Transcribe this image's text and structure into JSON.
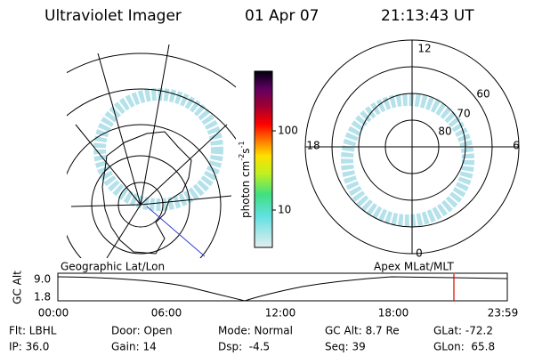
{
  "header": {
    "instrument": "Ultraviolet Imager",
    "date": "01 Apr 07",
    "time": "21:13:43 UT"
  },
  "colorbar": {
    "label_main": "photon cm",
    "label_exp1": "-2",
    "label_s": "s",
    "label_exp2": "-1",
    "ticks": [
      "100",
      "10"
    ]
  },
  "polar_plot": {
    "mlt_labels": [
      "12",
      "18",
      "6",
      "0"
    ],
    "lat_labels": [
      "60",
      "70",
      "80"
    ]
  },
  "altitude_plot": {
    "left_title": "Geographic Lat/Lon",
    "right_title": "Apex MLat/MLT",
    "y_label": "GC Alt",
    "y_ticks": [
      "9.0",
      "1.8"
    ],
    "x_ticks": [
      "00:00",
      "06:00",
      "12:00",
      "18:00",
      "23:59"
    ]
  },
  "info": {
    "rows": [
      [
        "Flt: LBHL",
        "Door: Open",
        "Mode: Normal",
        "GC Alt: 8.7 Re",
        "GLat: -72.2"
      ],
      [
        "IP: 36.0",
        "Gain: 14",
        "Dsp:  -4.5",
        "Seq: 39",
        "GLon:  65.8"
      ]
    ]
  }
}
